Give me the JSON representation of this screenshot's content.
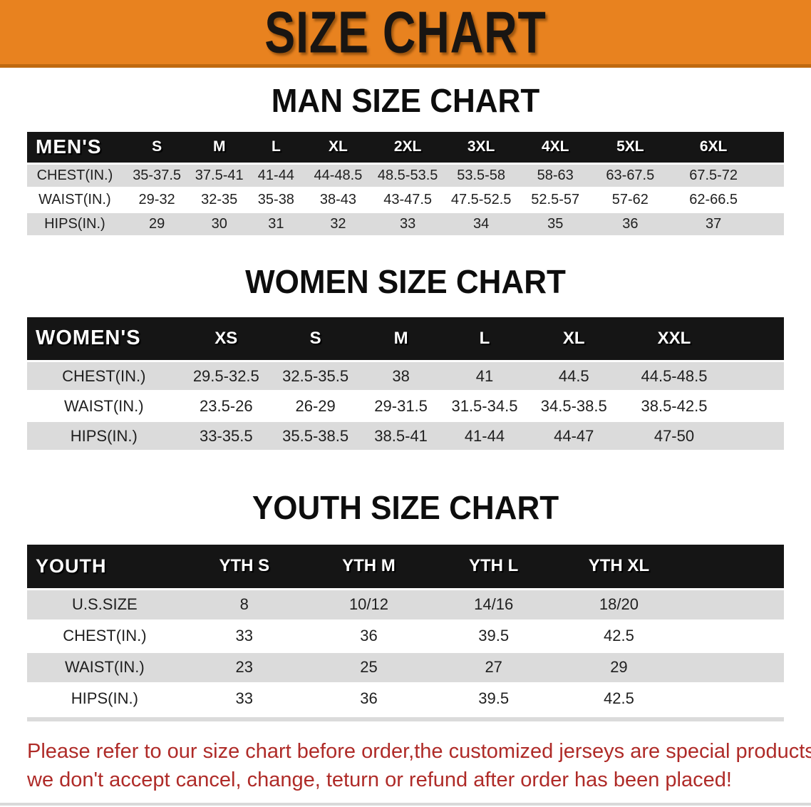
{
  "banner": {
    "title": "SIZE CHART"
  },
  "sections": [
    {
      "id": "men",
      "title": "MAN SIZE CHART",
      "header_label": "MEN'S",
      "columns": [
        "S",
        "M",
        "L",
        "XL",
        "2XL",
        "3XL",
        "4XL",
        "5XL",
        "6XL"
      ],
      "rows": [
        {
          "label": "CHEST(IN.)",
          "values": [
            "35-37.5",
            "37.5-41",
            "41-44",
            "44-48.5",
            "48.5-53.5",
            "53.5-58",
            "58-63",
            "63-67.5",
            "67.5-72"
          ]
        },
        {
          "label": "WAIST(IN.)",
          "values": [
            "29-32",
            "32-35",
            "35-38",
            "38-43",
            "43-47.5",
            "47.5-52.5",
            "52.5-57",
            "57-62",
            "62-66.5"
          ]
        },
        {
          "label": "HIPS(IN.)",
          "values": [
            "29",
            "30",
            "31",
            "32",
            "33",
            "34",
            "35",
            "36",
            "37"
          ]
        }
      ]
    },
    {
      "id": "women",
      "title": "WOMEN SIZE CHART",
      "header_label": "WOMEN'S",
      "columns": [
        "XS",
        "S",
        "M",
        "L",
        "XL",
        "XXL"
      ],
      "rows": [
        {
          "label": "CHEST(IN.)",
          "values": [
            "29.5-32.5",
            "32.5-35.5",
            "38",
            "41",
            "44.5",
            "44.5-48.5"
          ]
        },
        {
          "label": "WAIST(IN.)",
          "values": [
            "23.5-26",
            "26-29",
            "29-31.5",
            "31.5-34.5",
            "34.5-38.5",
            "38.5-42.5"
          ]
        },
        {
          "label": "HIPS(IN.)",
          "values": [
            "33-35.5",
            "35.5-38.5",
            "38.5-41",
            "41-44",
            "44-47",
            "47-50"
          ]
        }
      ]
    },
    {
      "id": "youth",
      "title": "YOUTH SIZE CHART",
      "header_label": "YOUTH",
      "columns": [
        "YTH S",
        "YTH M",
        "YTH L",
        "YTH XL"
      ],
      "rows": [
        {
          "label": "U.S.SIZE",
          "values": [
            "8",
            "10/12",
            "14/16",
            "18/20"
          ]
        },
        {
          "label": "CHEST(IN.)",
          "values": [
            "33",
            "36",
            "39.5",
            "42.5"
          ]
        },
        {
          "label": "WAIST(IN.)",
          "values": [
            "23",
            "25",
            "27",
            "29"
          ]
        },
        {
          "label": "HIPS(IN.)",
          "values": [
            "33",
            "36",
            "39.5",
            "42.5"
          ]
        }
      ]
    }
  ],
  "disclaimer": {
    "line1": "Please refer to our size chart before order,the customized jerseys are special products,",
    "line2": "we don't accept cancel, change, teturn or refund after order has been placed!"
  },
  "colors": {
    "banner_orange": "#e8821f",
    "banner_edge": "#bf690f",
    "table_header_black": "#151515",
    "row_gray": "#dbdbdb",
    "disclaimer_red": "#af2b28"
  }
}
